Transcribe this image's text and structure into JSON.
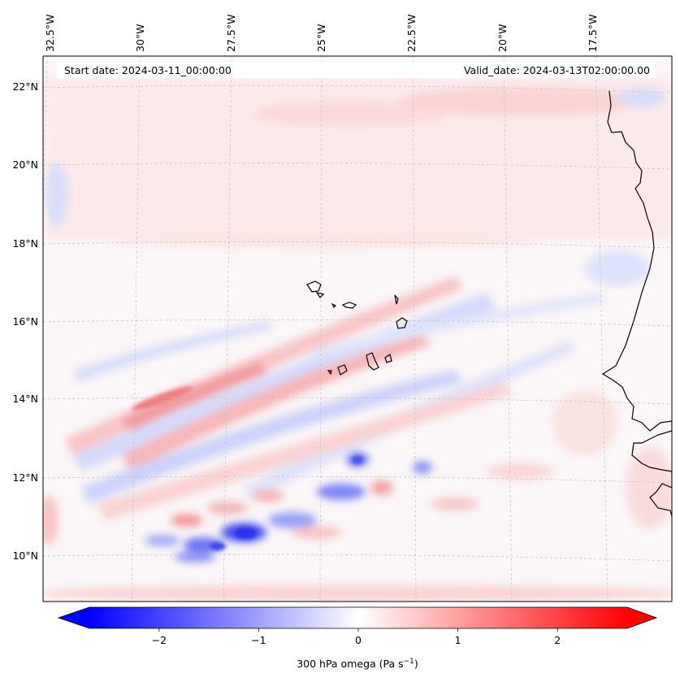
{
  "map": {
    "header": {
      "start_date": "Start date: 2024-03-11_00:00:00",
      "valid_date": "Valid_date: 2024-03-13T02:00:00.00"
    },
    "lon_labels": [
      "32.5°W",
      "30°W",
      "27.5°W",
      "25°W",
      "22.5°W",
      "20°W",
      "17.5°W"
    ],
    "lat_labels": [
      "22°N",
      "20°N",
      "18°N",
      "16°N",
      "14°N",
      "12°N",
      "10°N"
    ],
    "variable": "300 hPa omega",
    "units": "Pa s⁻¹"
  },
  "colorbar": {
    "min": -2.7,
    "max": 2.7,
    "tick_labels": [
      "−2",
      "−1",
      "0",
      "1",
      "2"
    ],
    "tick_values": [
      -2,
      -1,
      0,
      1,
      2
    ],
    "label": "300 hPa omega (Pa s",
    "label_exp": "−1",
    "label_close": ")",
    "colors": {
      "negative": "#0000ff",
      "neutral": "#ffffff",
      "positive": "#ff0000"
    }
  }
}
